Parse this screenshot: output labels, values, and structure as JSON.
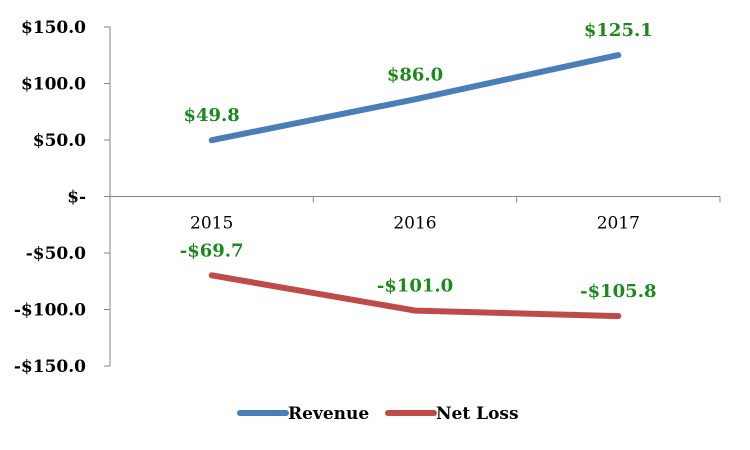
{
  "chart_data": {
    "type": "line",
    "categories": [
      "2015",
      "2016",
      "2017"
    ],
    "series": [
      {
        "name": "Revenue",
        "values": [
          49.8,
          86.0,
          125.1
        ],
        "color": "#4a7ebb",
        "labels": [
          "$49.8",
          "$86.0",
          "$125.1"
        ]
      },
      {
        "name": "Net Loss",
        "values": [
          -69.7,
          -101.0,
          -105.8
        ],
        "color": "#be4b48",
        "labels": [
          "-$69.7",
          "-$101.0",
          "-$105.8"
        ]
      }
    ],
    "y_ticks": [
      {
        "value": 150,
        "label": "$150.0"
      },
      {
        "value": 100,
        "label": "$100.0"
      },
      {
        "value": 50,
        "label": "$50.0"
      },
      {
        "value": 0,
        "label": "$-"
      },
      {
        "value": -50,
        "label": "-$50.0"
      },
      {
        "value": -100,
        "label": "-$100.0"
      },
      {
        "value": -150,
        "label": "-$150.0"
      }
    ],
    "ylim": [
      -150,
      150
    ],
    "data_label_color": "#1a8a1a",
    "grid": false,
    "legend_position": "bottom",
    "title": "",
    "xlabel": "",
    "ylabel": ""
  }
}
